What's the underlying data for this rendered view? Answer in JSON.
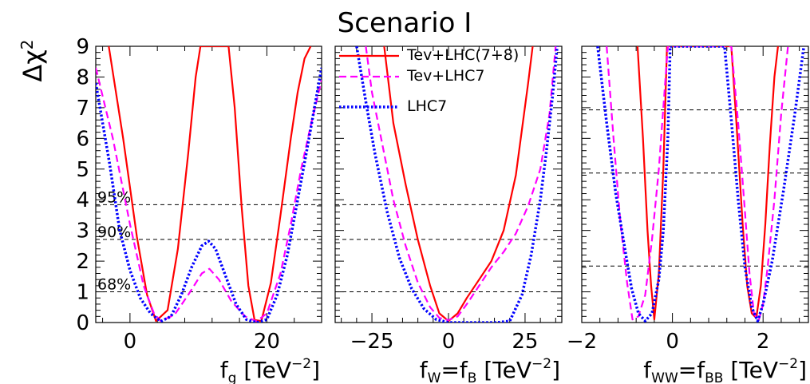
{
  "figure": {
    "title": "Scenario I",
    "ylabel_main": "Δχ",
    "ylabel_sup": "2"
  },
  "colors": {
    "tev_lhc78": "#ff0000",
    "tev_lhc7": "#ff00ff",
    "lhc7": "#0000ff",
    "reference": "#000000"
  },
  "legend": {
    "position": "top-left of middle panel",
    "entries": [
      {
        "label": "Tev+LHC(7+8)",
        "color": "#ff0000",
        "style": "solid"
      },
      {
        "label": "Tev+LHC7",
        "color": "#ff00ff",
        "style": "dashed"
      },
      {
        "label": "LHC7",
        "color": "#0000ff",
        "style": "dotted"
      }
    ]
  },
  "chart_data": [
    {
      "type": "line",
      "panel": "f_g",
      "xlabel_main": "f",
      "xlabel_sub": "g",
      "xlabel_rest": " [TeV",
      "xlabel_sup": "−2",
      "xlabel_close": "]",
      "xlim": [
        -5,
        28
      ],
      "ylim": [
        0,
        9
      ],
      "xticks": [
        0,
        20
      ],
      "xtick_labels": [
        "0",
        "20"
      ],
      "yticks": [
        0,
        1,
        2,
        3,
        4,
        5,
        6,
        7,
        8,
        9
      ],
      "ytick_labels": [
        "0",
        "1",
        "2",
        "3",
        "4",
        "5",
        "6",
        "7",
        "8",
        "9"
      ],
      "reference_lines": [
        {
          "y": 1.0,
          "label": "68%"
        },
        {
          "y": 2.71,
          "label": "90%"
        },
        {
          "y": 3.84,
          "label": "95%"
        }
      ],
      "series": [
        {
          "name": "Tev+LHC(7+8)",
          "color": "#ff0000",
          "style": "solid",
          "x": [
            -3.1,
            -1,
            1,
            2.5,
            3.8,
            5.5,
            7,
            8.5,
            9.6,
            10.3,
            14.4,
            15.3,
            16.3,
            17.3,
            18.2,
            19.2,
            20.6,
            22,
            23.5,
            24.5,
            25.5,
            26.4
          ],
          "y": [
            9,
            6,
            2.8,
            0.9,
            0.05,
            0.4,
            2.4,
            5.5,
            8,
            9,
            9,
            7,
            3.8,
            1.2,
            0.08,
            0.05,
            1.3,
            3.5,
            6,
            7.5,
            8.6,
            9
          ]
        },
        {
          "name": "Tev+LHC7",
          "color": "#ff00ff",
          "style": "dashed",
          "x": [
            -5,
            -2.5,
            0,
            2,
            3.5,
            4.5,
            6.5,
            8.5,
            10.5,
            11.6,
            13,
            14.8,
            16.8,
            18.5,
            20,
            22,
            23.5,
            25,
            26.5,
            28
          ],
          "y": [
            8.3,
            6,
            3.2,
            1.2,
            0.3,
            0.05,
            0.25,
            0.9,
            1.6,
            1.75,
            1.4,
            0.7,
            0.2,
            0.04,
            0.3,
            1.6,
            3.2,
            5,
            6.5,
            7.9
          ]
        },
        {
          "name": "LHC7",
          "color": "#0000ff",
          "style": "dotted",
          "x": [
            -5,
            -3,
            -1.5,
            0,
            1.5,
            3,
            4.5,
            6,
            7.5,
            9,
            10.5,
            11.5,
            12.5,
            14,
            15.5,
            17,
            18.5,
            20,
            21.5,
            23,
            24.5,
            26,
            28
          ],
          "y": [
            7.8,
            5.2,
            3,
            1.7,
            0.8,
            0.3,
            0.04,
            0.2,
            0.9,
            1.8,
            2.5,
            2.65,
            2.4,
            1.5,
            0.6,
            0.1,
            0.0,
            0.1,
            0.9,
            2.2,
            4,
            5.8,
            8.3
          ]
        }
      ]
    },
    {
      "type": "line",
      "panel": "f_W = f_B",
      "xlabel_main": "f",
      "xlabel_sub": "W",
      "xlabel_mid": "=f",
      "xlabel_sub2": "B",
      "xlabel_rest": " [TeV",
      "xlabel_sup": "−2",
      "xlabel_close": "]",
      "xlim": [
        -37,
        37
      ],
      "ylim": [
        0,
        9
      ],
      "xticks": [
        -25,
        0,
        25
      ],
      "xtick_labels": [
        "−25",
        "0",
        "25"
      ],
      "reference_lines": [
        {
          "y": 1.0
        },
        {
          "y": 2.71
        },
        {
          "y": 3.84
        }
      ],
      "series": [
        {
          "name": "Tev+LHC(7+8)",
          "color": "#ff0000",
          "style": "solid",
          "x": [
            -21,
            -18,
            -14,
            -10,
            -6,
            -3,
            0,
            3,
            6,
            10,
            14,
            18,
            22,
            24,
            26,
            27.5
          ],
          "y": [
            9,
            6.5,
            4.5,
            2.7,
            1.2,
            0.3,
            0.05,
            0.3,
            0.8,
            1.4,
            2.0,
            3.0,
            4.8,
            6.3,
            7.8,
            9
          ]
        },
        {
          "name": "Tev+LHC7",
          "color": "#ff00ff",
          "style": "dashed",
          "x": [
            -27,
            -25,
            -22,
            -18,
            -14,
            -10,
            -6,
            -3,
            0,
            3,
            6,
            10,
            14,
            18,
            22,
            26,
            30,
            33,
            35
          ],
          "y": [
            9,
            7.5,
            6,
            4,
            2.5,
            1.3,
            0.5,
            0.15,
            0.08,
            0.2,
            0.6,
            1.2,
            1.8,
            2.3,
            2.9,
            3.8,
            5,
            6.8,
            9
          ]
        },
        {
          "name": "LHC7",
          "color": "#0000ff",
          "style": "dotted",
          "x": [
            -30,
            -27,
            -24,
            -20,
            -16,
            -12,
            -8,
            -4,
            0,
            4,
            8,
            12,
            16,
            20,
            24,
            27,
            30,
            32,
            34,
            35.5
          ],
          "y": [
            9,
            7.2,
            5.5,
            3.6,
            2.1,
            1.1,
            0.45,
            0.1,
            0.0,
            0.0,
            0.0,
            0.0,
            0.0,
            0.05,
            0.9,
            2.2,
            4,
            5.6,
            7.4,
            9
          ]
        }
      ]
    },
    {
      "type": "line",
      "panel": "f_WW = f_BB",
      "xlabel_main": "f",
      "xlabel_sub": "WW",
      "xlabel_mid": "=f",
      "xlabel_sub2": "BB",
      "xlabel_rest": " [TeV",
      "xlabel_sup": "−2",
      "xlabel_close": "]",
      "xlim": [
        -2,
        3
      ],
      "ylim": [
        0,
        9
      ],
      "xticks": [
        -2,
        0,
        2
      ],
      "xtick_labels": [
        "−2",
        "0",
        "2"
      ],
      "reference_lines": [
        {
          "y": 1.84
        },
        {
          "y": 4.87
        },
        {
          "y": 6.93
        }
      ],
      "series": [
        {
          "name": "Tev+LHC(7+8)",
          "color": "#ff0000",
          "style": "solid",
          "x": [
            -0.77,
            -0.65,
            -0.55,
            -0.47,
            -0.4,
            -0.3,
            -0.2,
            -0.12,
            1.3,
            1.42,
            1.55,
            1.65,
            1.75,
            1.85,
            1.95,
            2.05,
            2.15,
            2.25,
            2.33
          ],
          "y": [
            9,
            6,
            3,
            1.2,
            0.1,
            1.6,
            5,
            9,
            9,
            6.3,
            3.2,
            1.2,
            0.3,
            0.15,
            1.2,
            3.2,
            5.8,
            8,
            9
          ]
        },
        {
          "name": "Tev+LHC7",
          "color": "#ff00ff",
          "style": "dashed",
          "x": [
            -1.45,
            -1.3,
            -1.15,
            -1.0,
            -0.88,
            -0.75,
            -0.6,
            -0.45,
            -0.3,
            -0.2,
            -0.1,
            1.3,
            1.45,
            1.6,
            1.7,
            1.8,
            1.9,
            2.0,
            2.1,
            2.25,
            2.4,
            2.55
          ],
          "y": [
            9,
            6,
            3.3,
            1.3,
            0.1,
            0.2,
            0.9,
            2.7,
            5,
            7,
            9,
            9,
            6.5,
            3.6,
            1.6,
            0.3,
            0.05,
            0.6,
            1.8,
            4,
            6.8,
            9
          ]
        },
        {
          "name": "LHC7",
          "color": "#0000ff",
          "style": "dotted",
          "x": [
            -1.65,
            -1.45,
            -1.25,
            -1.05,
            -0.9,
            -0.75,
            -0.6,
            -0.45,
            -0.3,
            -0.2,
            -0.1,
            -0.05,
            1.15,
            1.3,
            1.45,
            1.6,
            1.75,
            1.88,
            2.0,
            2.2,
            2.45,
            2.7,
            2.9
          ],
          "y": [
            9,
            6.5,
            4.2,
            2.4,
            1.1,
            0.3,
            0.05,
            0.3,
            1.4,
            3,
            6,
            9,
            9,
            6.6,
            4,
            1.8,
            0.5,
            0.05,
            0.6,
            2,
            4.3,
            6.8,
            9
          ]
        }
      ]
    }
  ]
}
